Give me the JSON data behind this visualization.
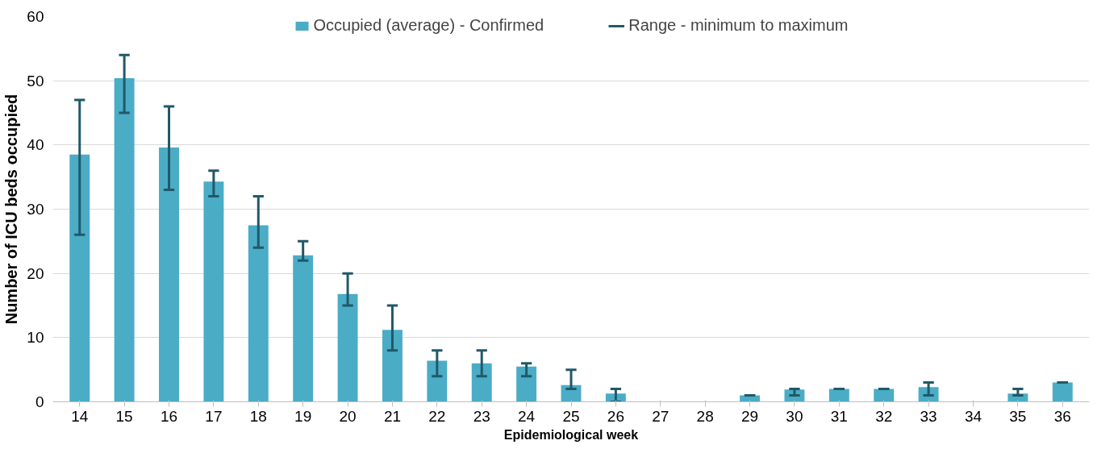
{
  "chart_data": {
    "type": "bar",
    "xlabel": "Epidemiological week",
    "ylabel": "Number of ICU beds occupied",
    "categories": [
      "14",
      "15",
      "16",
      "17",
      "18",
      "19",
      "20",
      "21",
      "22",
      "23",
      "24",
      "25",
      "26",
      "27",
      "28",
      "29",
      "30",
      "31",
      "32",
      "33",
      "34",
      "35",
      "36"
    ],
    "series": [
      {
        "name": "Occupied (average) - Confirmed",
        "color": "#4bacc6",
        "values": [
          38.5,
          50.4,
          39.6,
          34.3,
          27.5,
          22.8,
          16.8,
          11.2,
          6.4,
          6,
          5.5,
          2.6,
          1.3,
          0,
          0,
          1,
          1.9,
          2,
          2,
          2.3,
          0,
          1.3,
          3
        ],
        "errors": [
          [
            26,
            47
          ],
          [
            45,
            54
          ],
          [
            33,
            46
          ],
          [
            32,
            36
          ],
          [
            24,
            32
          ],
          [
            22,
            25
          ],
          [
            15,
            20
          ],
          [
            8,
            15
          ],
          [
            4,
            8
          ],
          [
            4,
            8
          ],
          [
            4,
            6
          ],
          [
            2,
            5
          ],
          [
            0,
            2
          ],
          null,
          null,
          [
            1,
            1
          ],
          [
            1,
            2
          ],
          [
            2,
            2
          ],
          [
            2,
            2
          ],
          [
            1,
            3
          ],
          null,
          [
            1,
            2
          ],
          [
            3,
            3
          ]
        ]
      }
    ],
    "annotations": [
      "Range - minimum to maximum"
    ],
    "ylim": [
      0,
      60
    ],
    "yticks": [
      0,
      10,
      20,
      30,
      40,
      50,
      60
    ],
    "grid": "y",
    "legend": "top"
  }
}
